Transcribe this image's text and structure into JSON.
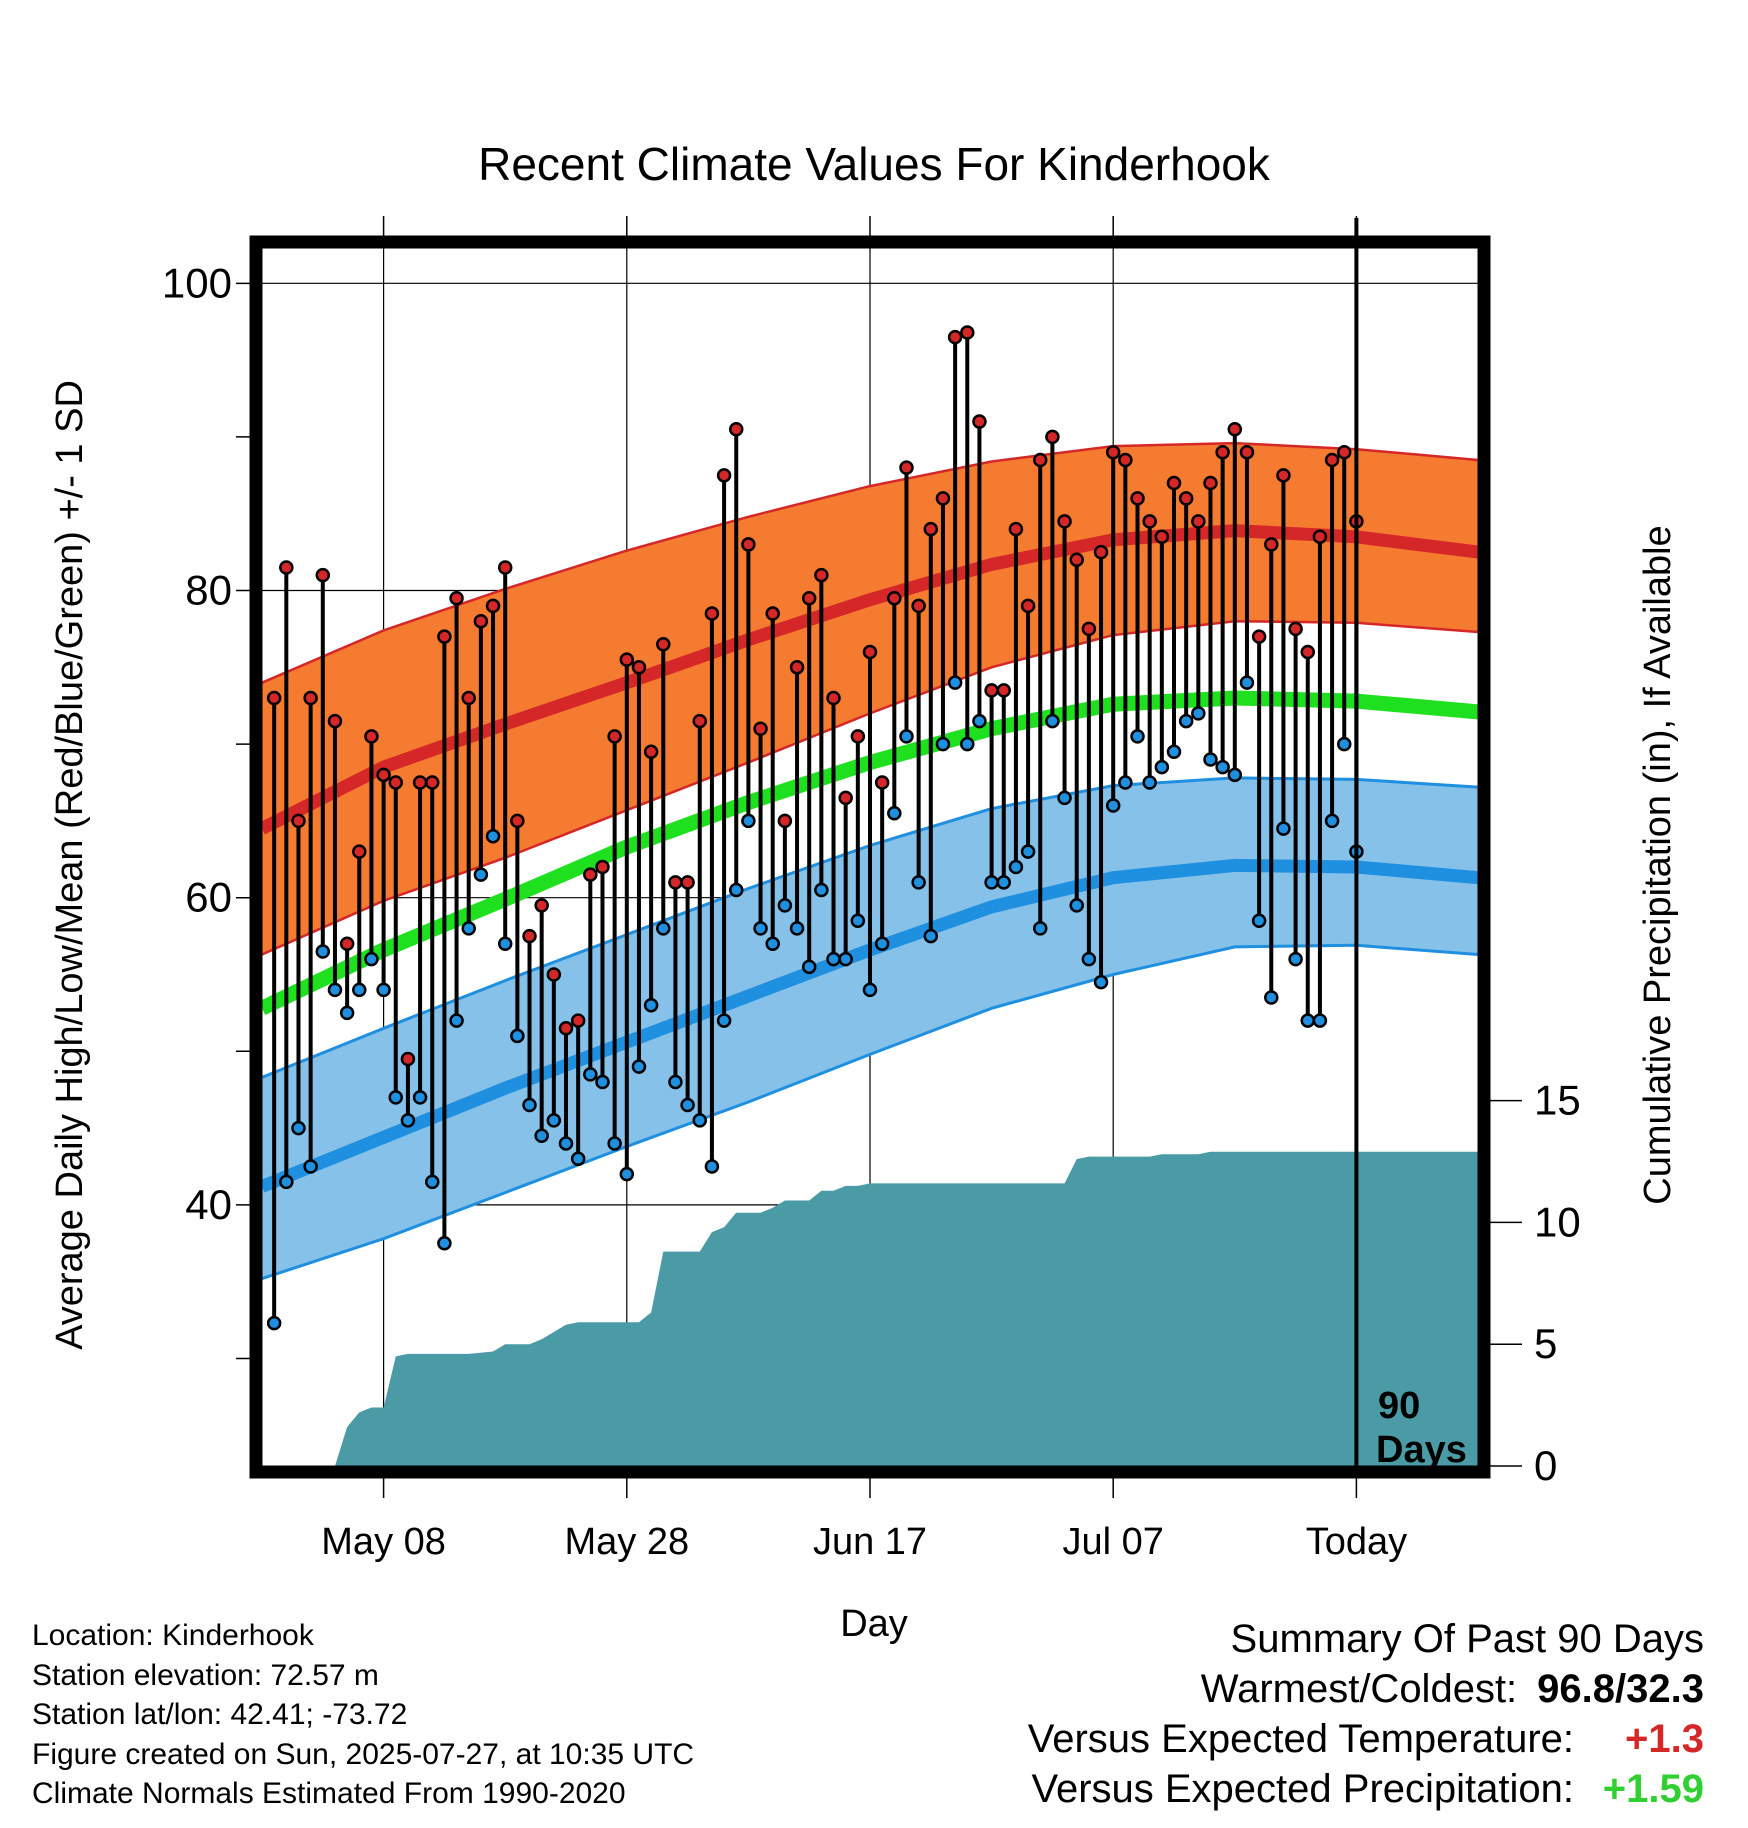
{
  "chart_data": {
    "type": "line",
    "title": "Recent Climate Values For Kinderhook",
    "xlabel": "Day",
    "ylabel_left": "Average Daily High/Low/Mean (Red/Blue/Green) +/- 1 SD",
    "ylabel_right": "Cumulative Precipitation (in), If Available",
    "x_ticks": [
      {
        "day": 9,
        "label": "May 08"
      },
      {
        "day": 29,
        "label": "May 28"
      },
      {
        "day": 49,
        "label": "Jun 17"
      },
      {
        "day": 69,
        "label": "Jul 07"
      },
      {
        "day": 89,
        "label": "Today"
      }
    ],
    "x_range": [
      -1,
      99
    ],
    "today_day": 89,
    "today_label": [
      "90",
      "Days"
    ],
    "y_left_ticks": [
      40,
      60,
      80,
      100
    ],
    "y_left_range": [
      23,
      102.3
    ],
    "y_right_ticks": [
      0,
      5,
      10,
      15
    ],
    "y_right_range": [
      0,
      50
    ],
    "grid": true,
    "normals": {
      "day": [
        -1,
        9,
        19,
        29,
        39,
        49,
        59,
        69,
        79,
        89,
        99
      ],
      "high_mean": [
        64.5,
        68.5,
        71.3,
        74.0,
        76.8,
        79.4,
        81.7,
        83.3,
        83.9,
        83.5,
        82.5
      ],
      "high_sd_upper": [
        74.0,
        77.4,
        80.1,
        82.6,
        84.8,
        86.8,
        88.4,
        89.4,
        89.6,
        89.2,
        88.5
      ],
      "high_sd_lower": [
        56.3,
        59.8,
        62.6,
        65.7,
        68.8,
        72.0,
        75.0,
        77.1,
        78.0,
        77.9,
        77.3
      ],
      "mean_mean": [
        52.8,
        56.6,
        59.9,
        63.3,
        66.2,
        68.8,
        71.0,
        72.6,
        73.0,
        72.8,
        72.1
      ],
      "low_mean": [
        41.2,
        44.4,
        47.6,
        50.6,
        53.6,
        56.6,
        59.4,
        61.3,
        62.1,
        62.0,
        61.3
      ],
      "low_sd_upper": [
        48.3,
        51.5,
        54.6,
        57.6,
        60.6,
        63.4,
        65.8,
        67.3,
        67.8,
        67.7,
        67.2
      ],
      "low_sd_lower": [
        35.2,
        37.8,
        40.8,
        43.8,
        46.7,
        49.8,
        52.8,
        55.0,
        56.8,
        56.9,
        56.3
      ]
    },
    "series": [
      {
        "name": "High",
        "color": "#d62728",
        "values": [
          73.0,
          81.5,
          65.0,
          73.0,
          81.0,
          71.5,
          57.0,
          63.0,
          70.5,
          68.0,
          67.5,
          49.5,
          67.5,
          67.5,
          77.0,
          79.5,
          73.0,
          78.0,
          79.0,
          81.5,
          65.0,
          57.5,
          59.5,
          55.0,
          51.5,
          52.0,
          61.5,
          62.0,
          70.5,
          75.5,
          75.0,
          69.5,
          76.5,
          61.0,
          61.0,
          71.5,
          78.5,
          87.5,
          90.5,
          83.0,
          71.0,
          78.5,
          65.0,
          75.0,
          79.5,
          81.0,
          73.0,
          66.5,
          70.5,
          76.0,
          67.5,
          79.5,
          88.0,
          79.0,
          84.0,
          86.0,
          96.5,
          96.8,
          91.0,
          73.5,
          73.5,
          84.0,
          79.0,
          88.5,
          90.0,
          84.5,
          82.0,
          77.5,
          82.5,
          89.0,
          88.5,
          86.0,
          84.5,
          83.5,
          87.0,
          86.0,
          84.5,
          87.0,
          89.0,
          90.5,
          89.0,
          77.0,
          83.0,
          87.5,
          77.5,
          76.0,
          83.5,
          88.5,
          89.0,
          84.5
        ]
      },
      {
        "name": "Low",
        "color": "#1f8fe0",
        "values": [
          32.3,
          41.5,
          45.0,
          42.5,
          56.5,
          54.0,
          52.5,
          54.0,
          56.0,
          54.0,
          47.0,
          45.5,
          47.0,
          41.5,
          37.5,
          52.0,
          58.0,
          61.5,
          64.0,
          57.0,
          51.0,
          46.5,
          44.5,
          45.5,
          44.0,
          43.0,
          48.5,
          48.0,
          44.0,
          42.0,
          49.0,
          53.0,
          58.0,
          48.0,
          46.5,
          45.5,
          42.5,
          52.0,
          60.5,
          65.0,
          58.0,
          57.0,
          59.5,
          58.0,
          55.5,
          60.5,
          56.0,
          56.0,
          58.5,
          54.0,
          57.0,
          65.5,
          70.5,
          61.0,
          57.5,
          70.0,
          74.0,
          70.0,
          71.5,
          61.0,
          61.0,
          62.0,
          63.0,
          58.0,
          71.5,
          66.5,
          59.5,
          56.0,
          54.5,
          66.0,
          67.5,
          70.5,
          67.5,
          68.5,
          69.5,
          71.5,
          72.0,
          69.0,
          68.5,
          68.0,
          74.0,
          58.5,
          53.5,
          64.5,
          56.0,
          52.0,
          52.0,
          65.0,
          70.0,
          63.0
        ]
      },
      {
        "name": "Cumulative Precipitation",
        "color": "#4a9ba6",
        "axis": "right",
        "day": [
          -1,
          0,
          1,
          2,
          3,
          4,
          5,
          6,
          7,
          8,
          9,
          10,
          11,
          12,
          14,
          16,
          18,
          19,
          20,
          21,
          22,
          23,
          24,
          25,
          26,
          27,
          28,
          29,
          30,
          31,
          32,
          33,
          34,
          35,
          36,
          37,
          38,
          39,
          40,
          41,
          42,
          43,
          44,
          45,
          46,
          47,
          48,
          49,
          50,
          51,
          52,
          53,
          54,
          55,
          56,
          57,
          58,
          59,
          60,
          61,
          62,
          63,
          64,
          65,
          66,
          67,
          68,
          69,
          70,
          71,
          72,
          73,
          74,
          75,
          76,
          77,
          78,
          79,
          80,
          81,
          82,
          83,
          84,
          85,
          86,
          87,
          88,
          89,
          99
        ],
        "values": [
          0,
          0,
          0,
          0,
          0,
          0,
          0,
          1.6,
          2.2,
          2.4,
          2.4,
          4.5,
          4.6,
          4.6,
          4.6,
          4.6,
          4.7,
          5.0,
          5.0,
          5.0,
          5.2,
          5.5,
          5.8,
          5.9,
          5.9,
          5.9,
          5.9,
          5.9,
          5.9,
          6.3,
          8.8,
          8.8,
          8.8,
          8.8,
          9.6,
          9.8,
          10.4,
          10.4,
          10.4,
          10.6,
          10.9,
          10.9,
          10.9,
          11.3,
          11.3,
          11.5,
          11.5,
          11.6,
          11.6,
          11.6,
          11.6,
          11.6,
          11.6,
          11.6,
          11.6,
          11.6,
          11.6,
          11.6,
          11.6,
          11.6,
          11.6,
          11.6,
          11.6,
          11.6,
          12.6,
          12.7,
          12.7,
          12.7,
          12.7,
          12.7,
          12.7,
          12.8,
          12.8,
          12.8,
          12.8,
          12.9,
          12.9,
          12.9,
          12.9,
          12.9,
          12.9,
          12.9,
          12.9,
          12.9,
          12.9,
          12.9,
          12.9,
          12.9,
          12.9
        ]
      }
    ]
  },
  "footer": {
    "location": "Location: Kinderhook",
    "elevation": "Station elevation: 72.57 m",
    "latlon": "Station lat/lon: 42.41; -73.72",
    "created": "Figure created on Sun, 2025-07-27, at 10:35 UTC",
    "normals": "Climate Normals Estimated From 1990-2020"
  },
  "summary": {
    "title": "Summary Of Past 90 Days",
    "warmest_label": "Warmest/Coldest:",
    "warmest_value": "96.8/32.3",
    "temp_label": "Versus Expected Temperature:",
    "temp_value": "+1.3",
    "precip_label": "Versus Expected Precipitation:",
    "precip_value": "+1.59",
    "temp_color": "#d62728",
    "precip_color": "#2fd02f"
  }
}
